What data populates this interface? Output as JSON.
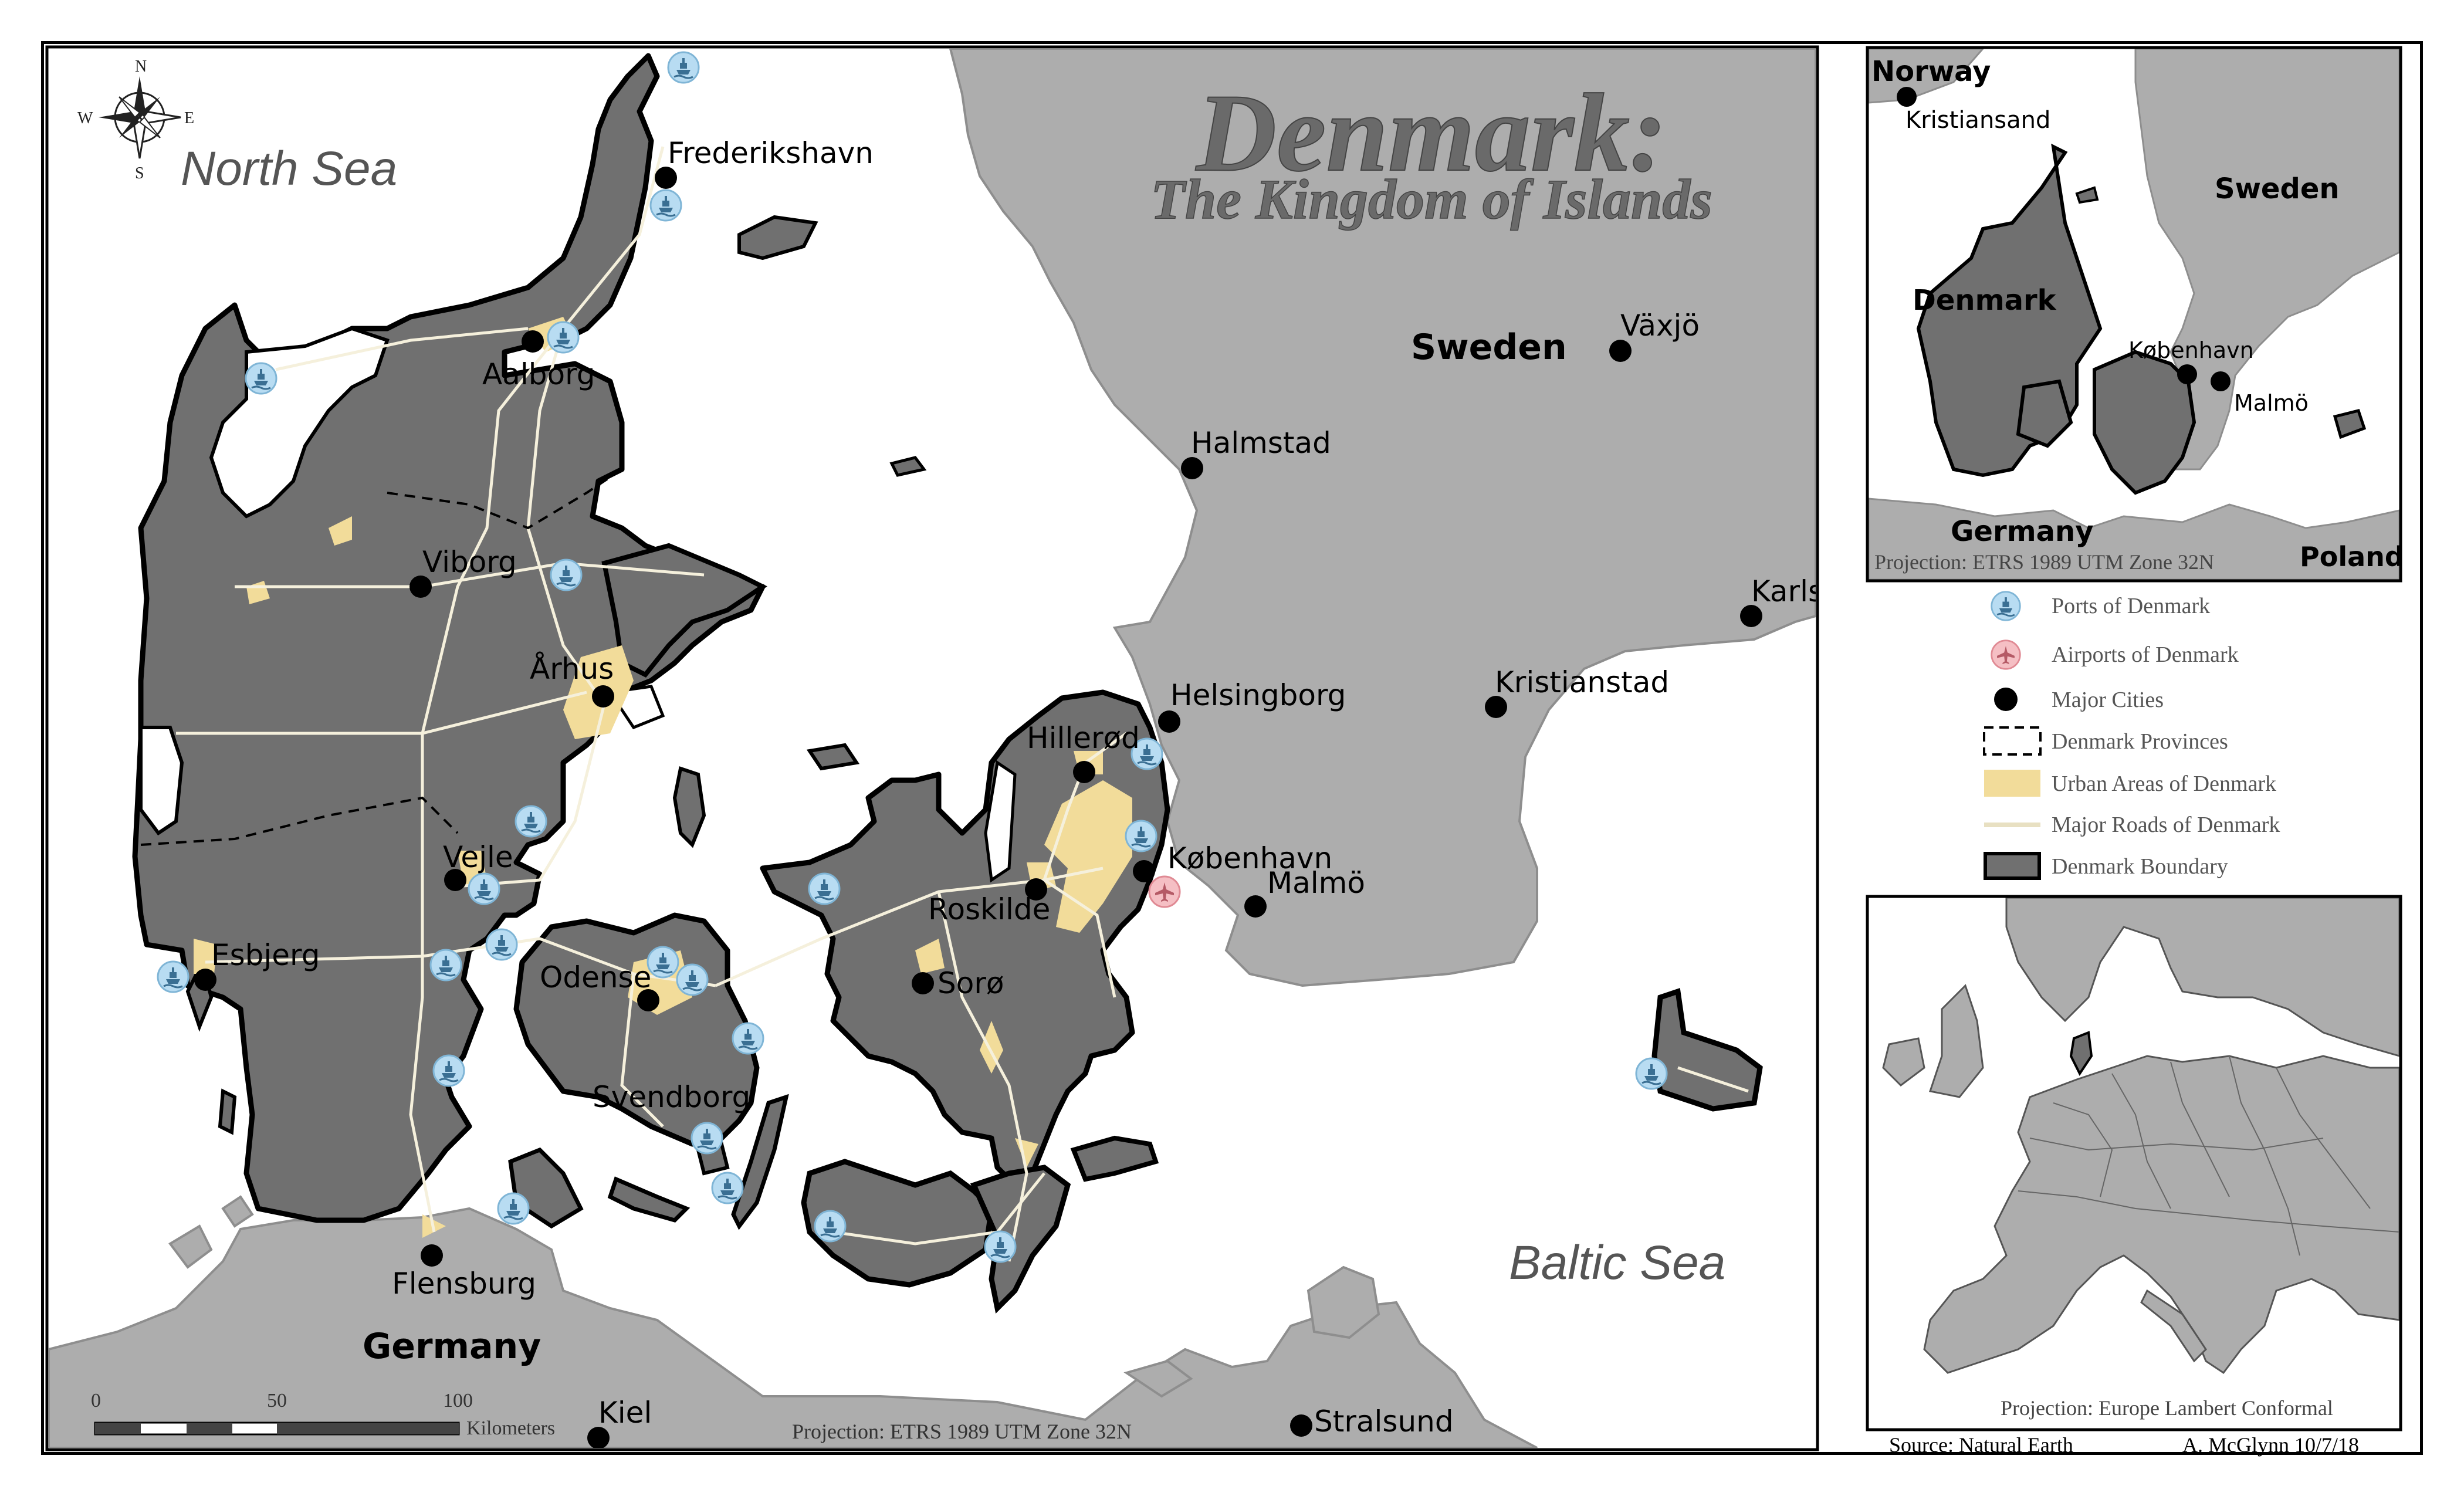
{
  "title": {
    "main": "Denmark:",
    "subtitle": "The Kingdom of Islands"
  },
  "water_labels": {
    "north_sea": "North Sea",
    "baltic_sea": "Baltic Sea"
  },
  "country_labels": {
    "sweden": "Sweden",
    "germany": "Germany"
  },
  "cities": {
    "frederikshavn": "Frederikshavn",
    "aalborg": "Aalborg",
    "viborg": "Viborg",
    "arhus": "Århus",
    "vejle": "Vejle",
    "esbjerg": "Esbjerg",
    "odense": "Odense",
    "svendborg": "Svendborg",
    "flensburg": "Flensburg",
    "kiel": "Kiel",
    "stralsund": "Stralsund",
    "hillerod": "Hillerød",
    "roskilde": "Roskilde",
    "soro": "Sorø",
    "kobenhavn": "København",
    "malmo": "Malmö",
    "helsingborg": "Helsingborg",
    "halmstad": "Halmstad",
    "vaxjo": "Växjö",
    "kristianstad": "Kristianstad",
    "karls": "Karls"
  },
  "scale_bar": {
    "ticks": [
      "0",
      "50",
      "100"
    ],
    "unit": "Kilometers"
  },
  "projection_main": "Projection: ETRS 1989 UTM Zone 32N",
  "inset_region": {
    "labels": {
      "norway": "Norway",
      "kristiansand": "Kristiansand",
      "sweden": "Sweden",
      "denmark": "Denmark",
      "kobenhavn": "København",
      "malmo": "Malmö",
      "germany": "Germany",
      "poland": "Poland"
    },
    "projection": "Projection: ETRS 1989 UTM Zone 32N"
  },
  "legend": {
    "items": [
      {
        "label": "Ports of Denmark",
        "icon": "port-icon"
      },
      {
        "label": "Airports of Denmark",
        "icon": "airport-icon"
      },
      {
        "label": "Major Cities",
        "icon": "city-dot-icon"
      },
      {
        "label": "Denmark Provinces",
        "icon": "dashed-box-icon"
      },
      {
        "label": "Urban Areas of Denmark",
        "icon": "urban-swatch-icon"
      },
      {
        "label": "Major Roads of Denmark",
        "icon": "road-line-icon"
      },
      {
        "label": "Denmark Boundary",
        "icon": "boundary-swatch-icon"
      }
    ]
  },
  "inset_europe": {
    "projection": "Projection: Europe Lambert Conformal"
  },
  "footer": {
    "source": "Source: Natural Earth",
    "author": "A. McGlynn 10/7/18"
  },
  "colors": {
    "denmark_land": "#707070",
    "foreign_land": "#adadad",
    "water": "#ffffff",
    "urban": "#f2dc9a",
    "roads": "#f5f0dc",
    "port": "#b8dcf2",
    "airport": "#f5bfc4",
    "title": "#6a6a6a"
  }
}
